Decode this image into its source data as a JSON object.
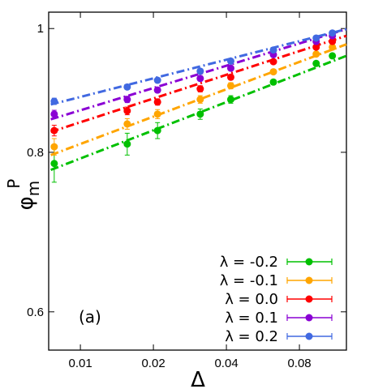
{
  "chart_data": {
    "type": "line",
    "xlabel": "Δ",
    "ylabel": "φ",
    "ylabel_sub": "m",
    "ylabel_sup": "P",
    "x_scale": "log",
    "y_scale": "log",
    "xlim": [
      0.0074,
      0.125
    ],
    "ylim": [
      0.56,
      1.03
    ],
    "x_ticks": [
      0.01,
      0.02,
      0.04,
      0.08
    ],
    "x_tick_labels": [
      "0.01",
      "0.02",
      "0.04",
      "0.08"
    ],
    "y_ticks": [
      0.6,
      0.8,
      1.0
    ],
    "y_tick_labels": [
      "0.6",
      "0.8",
      "1"
    ],
    "annotation": "(a)",
    "legend_position": "bottom-right",
    "series": [
      {
        "name": "λ = -0.2",
        "color": "#00c000",
        "x": [
          0.0078,
          0.0156,
          0.0208,
          0.0312,
          0.0417,
          0.0625,
          0.0938,
          0.1094
        ],
        "y": [
          0.784,
          0.812,
          0.832,
          0.857,
          0.88,
          0.908,
          0.939,
          0.952
        ],
        "yerr": [
          0.026,
          0.016,
          0.012,
          0.008,
          0.006,
          0.004,
          0.004,
          0.004
        ],
        "fit": [
          0.775,
          0.952
        ]
      },
      {
        "name": "λ = -0.1",
        "color": "#ffa500",
        "x": [
          0.0078,
          0.0156,
          0.0208,
          0.0312,
          0.0417,
          0.0625,
          0.0938,
          0.1094
        ],
        "y": [
          0.808,
          0.842,
          0.857,
          0.88,
          0.902,
          0.925,
          0.955,
          0.967
        ],
        "yerr": [
          0.012,
          0.008,
          0.007,
          0.006,
          0.005,
          0.004,
          0.004,
          0.004
        ],
        "fit": [
          0.796,
          0.972
        ]
      },
      {
        "name": "λ = 0.0",
        "color": "#ff0000",
        "x": [
          0.0078,
          0.0156,
          0.0208,
          0.0312,
          0.0417,
          0.0625,
          0.0938,
          0.1094
        ],
        "y": [
          0.832,
          0.862,
          0.876,
          0.897,
          0.916,
          0.942,
          0.967,
          0.977
        ],
        "yerr": [
          0.008,
          0.006,
          0.005,
          0.005,
          0.004,
          0.004,
          0.003,
          0.003
        ],
        "fit": [
          0.83,
          0.987
        ]
      },
      {
        "name": "λ = 0.1",
        "color": "#8a00d4",
        "x": [
          0.0078,
          0.0156,
          0.0208,
          0.0312,
          0.0417,
          0.0625,
          0.0938,
          0.1094
        ],
        "y": [
          0.857,
          0.88,
          0.895,
          0.914,
          0.931,
          0.954,
          0.977,
          0.987
        ],
        "yerr": [
          0.006,
          0.005,
          0.004,
          0.004,
          0.003,
          0.003,
          0.003,
          0.003
        ],
        "fit": [
          0.849,
          0.999
        ]
      },
      {
        "name": "λ = 0.2",
        "color": "#4169e1",
        "x": [
          0.0078,
          0.0156,
          0.0208,
          0.0312,
          0.0417,
          0.0625,
          0.0938,
          0.1094
        ],
        "y": [
          0.877,
          0.9,
          0.911,
          0.926,
          0.943,
          0.962,
          0.983,
          0.992
        ],
        "yerr": [
          0.005,
          0.004,
          0.004,
          0.003,
          0.003,
          0.003,
          0.003,
          0.003
        ],
        "fit": [
          0.872,
          0.999
        ]
      }
    ]
  }
}
